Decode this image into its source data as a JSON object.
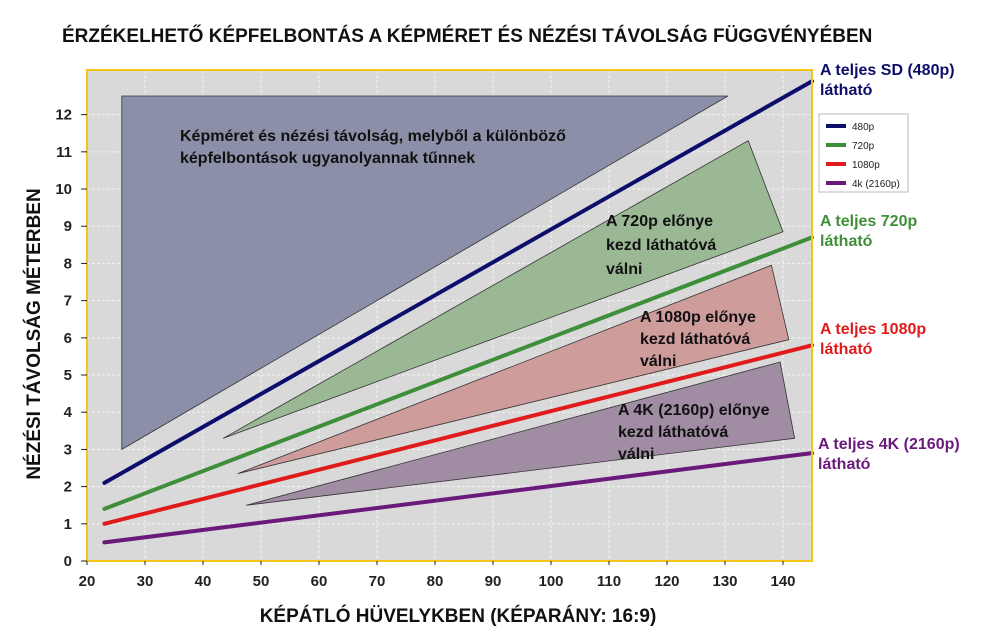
{
  "chart_data": {
    "type": "line",
    "title": "ÉRZÉKELHETŐ KÉPFELBONTÁS A KÉPMÉRET ÉS NÉZÉSI TÁVOLSÁG FÜGGVÉNYÉBEN",
    "xlabel": "KÉPÁTLÓ HÜVELYKBEN (KÉPARÁNY: 16:9)",
    "ylabel": "NÉZÉSI TÁVOLSÁG MÉTERBEN",
    "xlim": [
      20,
      145
    ],
    "ylim": [
      0,
      13.2
    ],
    "x_ticks": [
      20,
      30,
      40,
      50,
      60,
      70,
      80,
      90,
      100,
      110,
      120,
      130,
      140
    ],
    "y_ticks": [
      0,
      1,
      2,
      3,
      4,
      5,
      6,
      7,
      8,
      9,
      10,
      11,
      12
    ],
    "grid": true,
    "legend_position": "right",
    "colors": {
      "background": "#d9d9d9",
      "border": "#f5c518",
      "grid": "#f2f2f2"
    },
    "series": [
      {
        "name": "480p",
        "color": "#0d0d6b",
        "x": [
          23,
          145
        ],
        "y": [
          2.1,
          12.9
        ],
        "end_label": [
          "A teljes SD (480p)",
          "látható"
        ]
      },
      {
        "name": "720p",
        "color": "#3f8f3a",
        "x": [
          23,
          145
        ],
        "y": [
          1.4,
          8.7
        ],
        "end_label": [
          "A teljes 720p",
          "látható"
        ]
      },
      {
        "name": "1080p",
        "color": "#e01b1b",
        "x": [
          23,
          145
        ],
        "y": [
          1.0,
          5.8
        ],
        "end_label": [
          "A teljes 1080p",
          "látható"
        ]
      },
      {
        "name": "4k (2160p)",
        "color": "#6a1a7a",
        "x": [
          23,
          145
        ],
        "y": [
          0.5,
          2.9
        ],
        "end_label": [
          "A teljes 4K (2160p)",
          "látható"
        ]
      }
    ],
    "regions": [
      {
        "fill": "#8b8fa8",
        "points": [
          [
            26,
            12.5
          ],
          [
            130.5,
            12.5
          ],
          [
            26,
            3.0
          ]
        ],
        "text": [
          "Képméret és nézési távolság, melyből a különböző",
          "képfelbontások ugyanolyannak tűnnek"
        ]
      },
      {
        "fill": "#9ab893",
        "points": [
          [
            134,
            11.3
          ],
          [
            140,
            8.85
          ],
          [
            43.5,
            3.3
          ]
        ],
        "text": [
          "A 720p előnye",
          "kezd láthatóvá",
          "válni"
        ]
      },
      {
        "fill": "#cf9c9c",
        "points": [
          [
            138,
            7.95
          ],
          [
            141,
            5.95
          ],
          [
            46,
            2.35
          ]
        ],
        "text": [
          "A 1080p előnye",
          "kezd láthatóvá",
          "válni"
        ]
      },
      {
        "fill": "#a08ca3",
        "points": [
          [
            139.5,
            5.35
          ],
          [
            142,
            3.3
          ],
          [
            47.5,
            1.5
          ]
        ],
        "text": [
          "A 4K (2160p) előnye",
          "kezd láthatóvá",
          "válni"
        ]
      }
    ]
  }
}
